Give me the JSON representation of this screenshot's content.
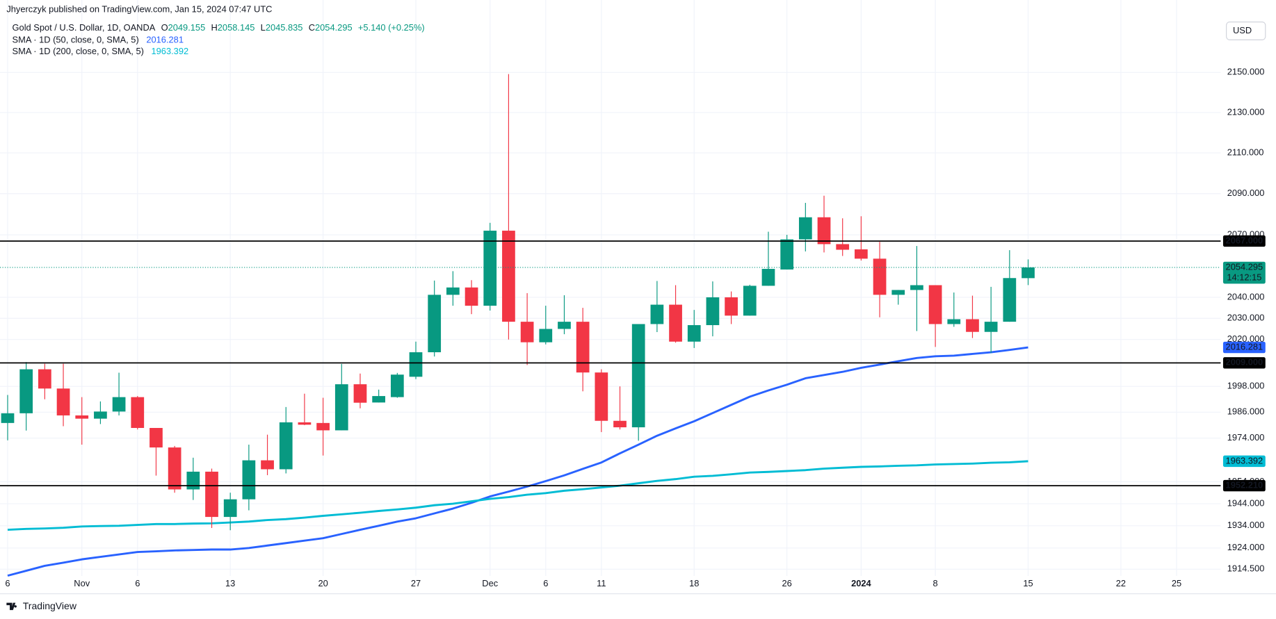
{
  "chart_data": {
    "type": "candlestick",
    "source": "Jhyerczyk published on TradingView.com, Jan 15, 2024 07:47 UTC",
    "title": "Gold Spot / U.S. Dollar, 1D, OANDA",
    "ohlc_letters": [
      "O",
      "H",
      "L",
      "C"
    ],
    "change_label": "+5.140 (+0.25%)",
    "currency": "USD",
    "countdown": "14:12:15",
    "brand": "TradingView",
    "up_color": "#089981",
    "down_color": "#f23645",
    "level_color": "#000000",
    "log_scale": true,
    "grid": true,
    "ylim": [
      1911.5,
      2186.7
    ],
    "yticks": [
      {
        "value": 1914.5,
        "label": "1914.500"
      },
      {
        "value": 1924,
        "label": "1924.000"
      },
      {
        "value": 1934,
        "label": "1934.000"
      },
      {
        "value": 1944,
        "label": "1944.000"
      },
      {
        "value": 1954,
        "label": "1954.000"
      },
      {
        "value": 1974,
        "label": "1974.000"
      },
      {
        "value": 1986,
        "label": "1986.000"
      },
      {
        "value": 1998,
        "label": "1998.000"
      },
      {
        "value": 2020,
        "label": "2020.000"
      },
      {
        "value": 2030,
        "label": "2030.000"
      },
      {
        "value": 2040,
        "label": "2040.000"
      },
      {
        "value": 2070,
        "label": "2070.000"
      },
      {
        "value": 2090,
        "label": "2090.000"
      },
      {
        "value": 2110,
        "label": "2110.000"
      },
      {
        "value": 2130,
        "label": "2130.000"
      },
      {
        "value": 2150,
        "label": "2150.000"
      }
    ],
    "levels": [
      {
        "value": 2067,
        "label": "2067.000"
      },
      {
        "value": 2009,
        "label": "2009.000"
      },
      {
        "value": 1952.21,
        "label": "1952.210"
      }
    ],
    "categories": [
      "6",
      null,
      null,
      null,
      "Nov",
      null,
      null,
      "6",
      null,
      null,
      null,
      null,
      "13",
      null,
      null,
      null,
      null,
      "20",
      null,
      null,
      null,
      null,
      "27",
      null,
      null,
      null,
      "Dec",
      null,
      null,
      "6",
      null,
      null,
      "11",
      null,
      null,
      null,
      null,
      "18",
      null,
      null,
      null,
      null,
      "26",
      null,
      null,
      null,
      "2024",
      null,
      null,
      null,
      "8",
      null,
      null,
      null,
      null,
      "15",
      null,
      null,
      null,
      null,
      "22",
      null,
      null,
      "25"
    ],
    "open": [
      1981,
      1985.5,
      2006,
      1997,
      1984.5,
      1983,
      1986.3,
      1993,
      1978.7,
      1969.7,
      1950.5,
      1958.6,
      1938,
      1946,
      1963.8,
      1959.7,
      1981.3,
      1981,
      1977.6,
      1999,
      1990.5,
      1993,
      2002.5,
      2014,
      2041.2,
      2044.7,
      2036,
      2072,
      2028.4,
      2018.7,
      2025,
      2028.4,
      2004.5,
      1982,
      1979,
      2027.3,
      2036.5,
      2019,
      2026.8,
      2040,
      2031.3,
      2045.5,
      2053.3,
      2067.8,
      2078.5,
      2065.5,
      2063,
      2058.5,
      2041.2,
      2043.5,
      2045.8,
      2027.3,
      2029.6,
      2023.6,
      2028.4,
      2049.155,
      null,
      null,
      null,
      null,
      null,
      null,
      null,
      null
    ],
    "high": [
      1994,
      2009.4,
      2008.6,
      2008.6,
      1993,
      1991,
      2004.4,
      1993.5,
      1978.7,
      1970.4,
      1965,
      1960,
      1949,
      1971,
      1975.6,
      1988.4,
      1994.6,
      1992.7,
      2008.5,
      2004,
      1996.5,
      2004.3,
      2019,
      2048,
      2052.5,
      2048.2,
      2075.8,
      2149.2,
      2042,
      2036,
      2041,
      2035,
      2006,
      1998,
      2027.3,
      2047.8,
      2045.8,
      2034,
      2047.6,
      2042.8,
      2046,
      2071.5,
      2070,
      2085.5,
      2089,
      2078,
      2079,
      2066.6,
      2043.5,
      2064.6,
      2045.8,
      2042.3,
      2040.8,
      2045,
      2062.6,
      2058.145,
      null,
      null,
      null,
      null,
      null,
      null,
      null,
      null
    ],
    "low": [
      1973,
      1977.5,
      1992,
      1979.5,
      1971,
      1980.5,
      1984.5,
      1978,
      1956.8,
      1949,
      1945.7,
      1933,
      1932,
      1941,
      1957,
      1957.8,
      1980,
      1966,
      1977.6,
      1987.8,
      1990.5,
      1992.7,
      2001.4,
      2012,
      2036,
      2032,
      2033.7,
      2020,
      2008,
      2017.7,
      2022.5,
      1995.7,
      1976.8,
      1978,
      1972.8,
      2023.5,
      2018.5,
      2016,
      2021.5,
      2027.3,
      2031.3,
      2045.5,
      2053.3,
      2062,
      2061.5,
      2059.8,
      2057.6,
      2030.5,
      2036.5,
      2024,
      2016.5,
      2026,
      2020.7,
      2013.6,
      2028.4,
      2045.835,
      null,
      null,
      null,
      null,
      null,
      null,
      null,
      null
    ],
    "close": [
      1985.5,
      2006,
      1997,
      1984.5,
      1983,
      1986.3,
      1993,
      1978.7,
      1969.7,
      1950.5,
      1958.6,
      1938,
      1946,
      1963.8,
      1959.7,
      1981.3,
      1980.2,
      1977.6,
      1999,
      1990.4,
      1993.5,
      2003.5,
      2014,
      2041.2,
      2044.7,
      2036,
      2072,
      2028.4,
      2018.7,
      2025,
      2028.4,
      2004.5,
      1982,
      1979,
      2027.3,
      2036.5,
      2019,
      2026.8,
      2040,
      2031.3,
      2045.5,
      2053.6,
      2067.8,
      2078.5,
      2065.5,
      2062.8,
      2058.5,
      2041.2,
      2043.5,
      2045.8,
      2027.3,
      2029.6,
      2023.6,
      2028.4,
      2049.2,
      2054.295,
      null,
      null,
      null,
      null,
      null,
      null,
      null,
      null
    ],
    "series": [
      {
        "name": "SMA · 1D (50, close, 0, SMA, 5)",
        "color": "#2962ff",
        "values": [
          1911.6,
          1913.8,
          1916,
          1917.4,
          1918.9,
          1920,
          1921.1,
          1922.2,
          1922.5,
          1922.9,
          1923.1,
          1923.3,
          1923.3,
          1924,
          1925.1,
          1926.2,
          1927.3,
          1928.4,
          1930.3,
          1932.2,
          1934,
          1935.9,
          1937.4,
          1939.6,
          1941.8,
          1944.4,
          1947.3,
          1949.5,
          1951.8,
          1954.3,
          1956.9,
          1959.9,
          1962.8,
          1967,
          1971,
          1975.1,
          1978.5,
          1981.8,
          1985.6,
          1989.4,
          1993.2,
          1996.1,
          1998.8,
          2001.8,
          2003.3,
          2004.8,
          2006.7,
          2008.2,
          2009.8,
          2011.3,
          2012.1,
          2012.4,
          2013.2,
          2014,
          2015.1,
          2016.281,
          null,
          null,
          null,
          null,
          null,
          null,
          null,
          null
        ]
      },
      {
        "name": "SMA · 1D (200, close, 0, SMA, 5)",
        "color": "#00bcd4",
        "values": [
          1932.2,
          1932.6,
          1932.8,
          1933.1,
          1933.7,
          1933.9,
          1934,
          1934.4,
          1934.8,
          1934.8,
          1935,
          1935.1,
          1935.5,
          1935.9,
          1936.6,
          1937,
          1937.7,
          1938.5,
          1939.2,
          1939.9,
          1940.7,
          1941.4,
          1942.2,
          1943.3,
          1944,
          1945.1,
          1946.2,
          1947,
          1948.1,
          1948.8,
          1949.9,
          1950.6,
          1951.4,
          1952.2,
          1953.3,
          1954.4,
          1955.2,
          1956.3,
          1956.7,
          1957.4,
          1958.2,
          1958.5,
          1958.9,
          1959.3,
          1960,
          1960.4,
          1960.8,
          1961,
          1961.3,
          1961.5,
          1961.9,
          1962.1,
          1962.3,
          1962.7,
          1962.9,
          1963.392,
          null,
          null,
          null,
          null,
          null,
          null,
          null,
          null
        ]
      }
    ]
  }
}
